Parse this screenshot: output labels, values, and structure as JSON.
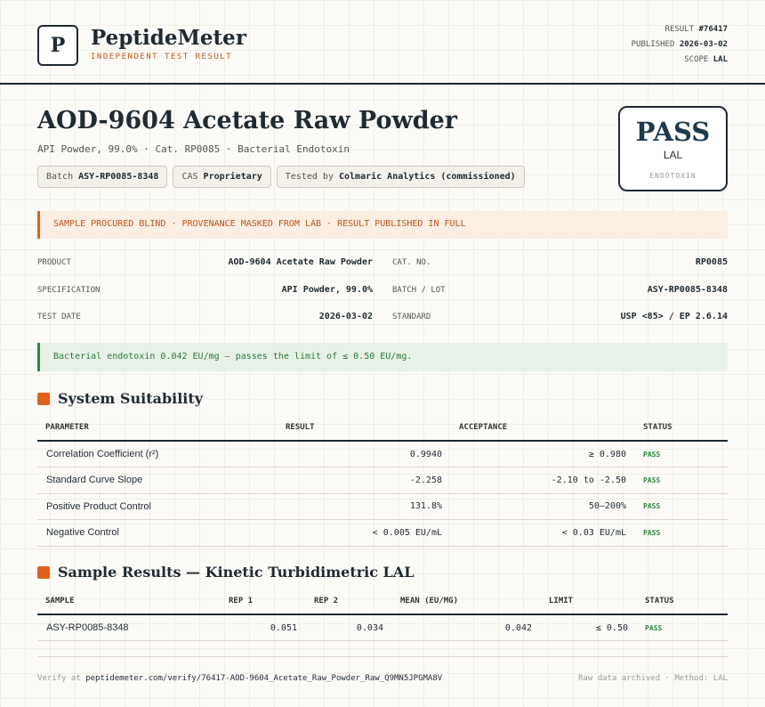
{
  "header": {
    "logo": "P",
    "brand": "PeptideMeter",
    "tagline": "INDEPENDENT TEST RESULT",
    "meta": [
      {
        "label": "RESULT",
        "value": "#76417"
      },
      {
        "label": "PUBLISHED",
        "value": "2026-03-02"
      },
      {
        "label": "SCOPE",
        "value": "LAL"
      }
    ]
  },
  "product": {
    "title": "AOD-9604 Acetate Raw Powder",
    "subtitle": "API Powder, 99.0% · Cat. RP0085 · Bacterial Endotoxin",
    "chips": [
      {
        "label": "Batch",
        "value": "ASY-RP0085-8348"
      },
      {
        "label": "CAS",
        "value": "Proprietary"
      },
      {
        "label": "Tested by",
        "value": "Colmaric Analytics (commissioned)"
      }
    ]
  },
  "verdict": {
    "result": "PASS",
    "method": "LAL",
    "category": "ENDOTOXIN"
  },
  "banner": "SAMPLE PROCURED BLIND · PROVENANCE MASKED FROM LAB · RESULT PUBLISHED IN FULL",
  "details": [
    {
      "label": "PRODUCT",
      "value": "AOD-9604 Acetate Raw Powder"
    },
    {
      "label": "CAT. NO.",
      "value": "RP0085"
    },
    {
      "label": "SPECIFICATION",
      "value": "API Powder, 99.0%"
    },
    {
      "label": "BATCH / LOT",
      "value": "ASY-RP0085-8348"
    },
    {
      "label": "TEST DATE",
      "value": "2026-03-02"
    },
    {
      "label": "STANDARD",
      "value": "USP <85> / EP 2.6.14"
    }
  ],
  "summary": "Bacterial endotoxin 0.042 EU/mg — passes the limit of ≤ 0.50 EU/mg.",
  "suitability": {
    "title": "System Suitability",
    "columns": [
      "PARAMETER",
      "RESULT",
      "ACCEPTANCE",
      "STATUS"
    ],
    "rows": [
      [
        "Correlation Coefficient (r²)",
        "0.9940",
        "≥ 0.980",
        "PASS"
      ],
      [
        "Standard Curve Slope",
        "-2.258",
        "-2.10 to -2.50",
        "PASS"
      ],
      [
        "Positive Product Control",
        "131.8%",
        "50–200%",
        "PASS"
      ],
      [
        "Negative Control",
        "< 0.005 EU/mL",
        "< 0.03 EU/mL",
        "PASS"
      ]
    ]
  },
  "samples": {
    "title": "Sample Results — Kinetic Turbidimetric LAL",
    "columns": [
      "SAMPLE",
      "REP 1",
      "REP 2",
      "MEAN (EU/MG)",
      "LIMIT",
      "STATUS"
    ],
    "rows": [
      [
        "ASY-RP0085-8348",
        "0.051",
        "0.034",
        "0.042",
        "≤ 0.50",
        "PASS"
      ]
    ]
  },
  "footer": {
    "verify_label": "Verify at",
    "verify_url": "peptidemeter.com/verify/76417-AOD-9604_Acetate_Raw_Powder_Raw_Q9MN5JPGMA8V",
    "note": "Raw data archived · Method: LAL"
  }
}
